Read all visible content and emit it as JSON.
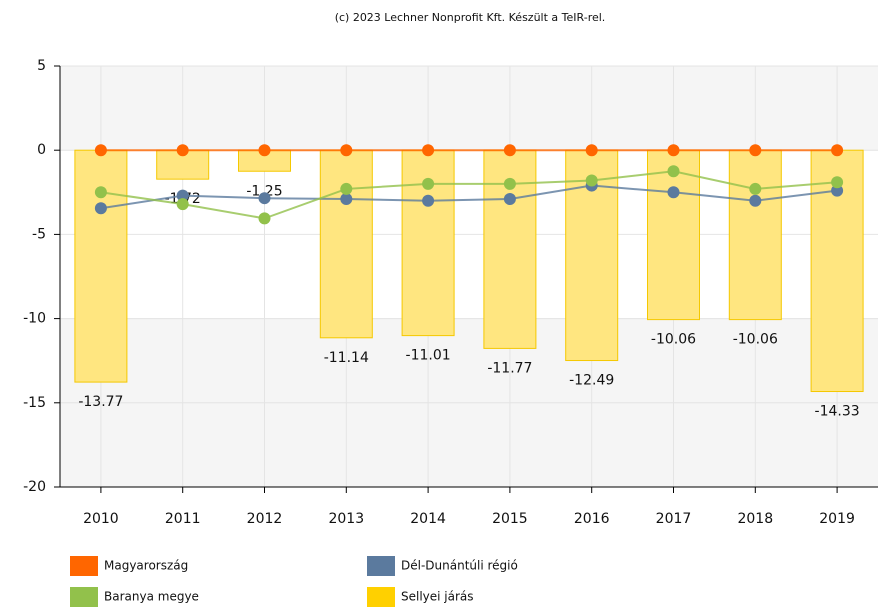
{
  "chart_data": {
    "type": "bar",
    "title": "(c) 2023 Lechner Nonprofit Kft. Készült a TeIR-rel.",
    "categories": [
      "2010",
      "2011",
      "2012",
      "2013",
      "2014",
      "2015",
      "2016",
      "2017",
      "2018",
      "2019"
    ],
    "ylim": [
      -20,
      5
    ],
    "yticks": [
      -20,
      -15,
      -10,
      -5,
      0,
      5
    ],
    "grid": true,
    "series": [
      {
        "name": "Magyarország",
        "type": "line",
        "color": "#ff6600",
        "values": [
          0,
          0,
          0,
          0,
          0,
          0,
          0,
          0,
          0,
          0
        ]
      },
      {
        "name": "Dél-Dunántúli régió",
        "type": "line",
        "color": "#5b7a9e",
        "values": [
          -3.45,
          -2.7,
          -2.85,
          -2.9,
          -3.0,
          -2.9,
          -2.1,
          -2.5,
          -3.0,
          -2.4
        ]
      },
      {
        "name": "Baranya megye",
        "type": "line",
        "color": "#92c14b",
        "values": [
          -2.5,
          -3.2,
          -4.05,
          -2.3,
          -2.0,
          -2.0,
          -1.8,
          -1.25,
          -2.3,
          -1.9
        ]
      },
      {
        "name": "Sellyei járás",
        "type": "bar",
        "color": "#ffe680",
        "values": [
          -13.77,
          -1.72,
          -1.25,
          -11.14,
          -11.01,
          -11.77,
          -12.49,
          -10.06,
          -10.06,
          -14.33
        ]
      }
    ]
  }
}
